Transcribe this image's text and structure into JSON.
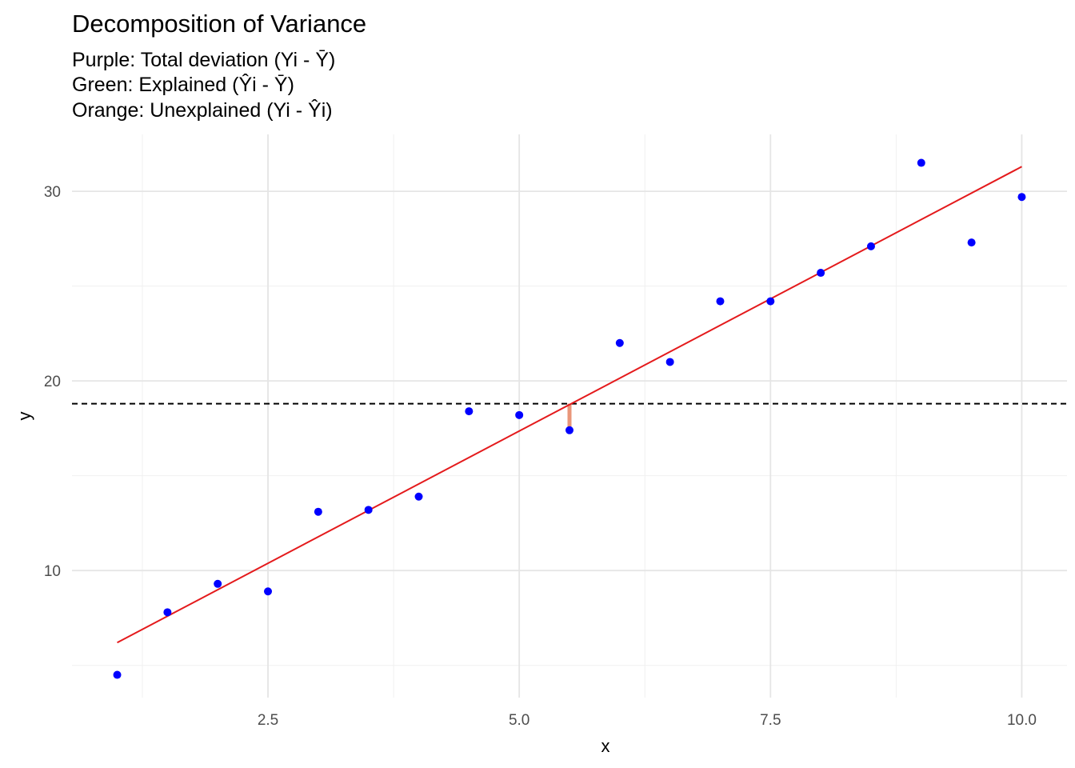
{
  "chart_data": {
    "type": "scatter",
    "title": "Decomposition of Variance",
    "subtitle_lines": [
      "Purple: Total deviation (Yi - Ȳ)",
      "Green: Explained (Ŷi - Ȳ)",
      "Orange: Unexplained (Yi - Ŷi)"
    ],
    "xlabel": "x",
    "ylabel": "y",
    "xlim": [
      0.55,
      10.45
    ],
    "ylim": [
      3.3,
      33.0
    ],
    "x_ticks": [
      2.5,
      5.0,
      7.5,
      10.0
    ],
    "x_tick_labels": [
      "2.5",
      "5.0",
      "7.5",
      "10.0"
    ],
    "y_ticks": [
      10,
      20,
      30
    ],
    "y_tick_labels": [
      "10",
      "20",
      "30"
    ],
    "grid": true,
    "points": {
      "x": [
        1.0,
        1.5,
        2.0,
        2.5,
        3.0,
        3.5,
        4.0,
        4.5,
        5.0,
        5.5,
        6.0,
        6.5,
        7.0,
        7.5,
        8.0,
        8.5,
        9.0,
        9.5,
        10.0
      ],
      "y": [
        4.5,
        7.8,
        9.3,
        8.9,
        13.1,
        13.2,
        13.9,
        18.4,
        18.2,
        17.4,
        22.0,
        21.0,
        24.2,
        24.2,
        25.7,
        27.1,
        31.5,
        27.3,
        29.7
      ],
      "color": "#0000ff"
    },
    "regression_line": {
      "x": [
        1.0,
        10.0
      ],
      "y": [
        6.2,
        31.3
      ],
      "color": "#e41a1c"
    },
    "mean_line": {
      "y": 18.8,
      "color": "#000000",
      "style": "dashed"
    },
    "highlight_segment": {
      "x": 5.5,
      "y_from": 17.4,
      "y_to": 18.8,
      "color": "#e9967a"
    }
  }
}
